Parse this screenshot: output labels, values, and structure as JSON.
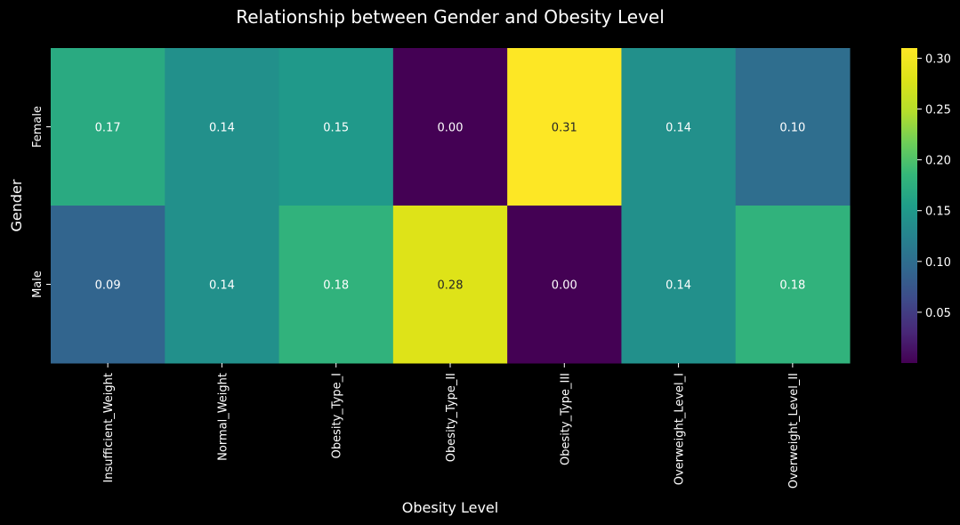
{
  "chart_data": {
    "type": "heatmap",
    "title": "Relationship between Gender and Obesity Level",
    "xlabel": "Obesity Level",
    "ylabel": "Gender",
    "x_categories": [
      "Insufficient_Weight",
      "Normal_Weight",
      "Obesity_Type_I",
      "Obesity_Type_II",
      "Obesity_Type_III",
      "Overweight_Level_I",
      "Overweight_Level_II"
    ],
    "y_categories": [
      "Female",
      "Male"
    ],
    "values": [
      [
        0.17,
        0.14,
        0.15,
        0.0,
        0.31,
        0.14,
        0.1
      ],
      [
        0.09,
        0.14,
        0.18,
        0.28,
        0.0,
        0.14,
        0.18
      ]
    ],
    "colormap": "viridis",
    "color_range": [
      0.0,
      0.31
    ],
    "colorbar_ticks": [
      0.05,
      0.1,
      0.15,
      0.2,
      0.25,
      0.3
    ],
    "colorbar_tick_labels": [
      "0.05",
      "0.10",
      "0.15",
      "0.20",
      "0.25",
      "0.30"
    ],
    "annotation_format": "0.00",
    "background_color": "#000000",
    "text_color": "#ffffff"
  }
}
